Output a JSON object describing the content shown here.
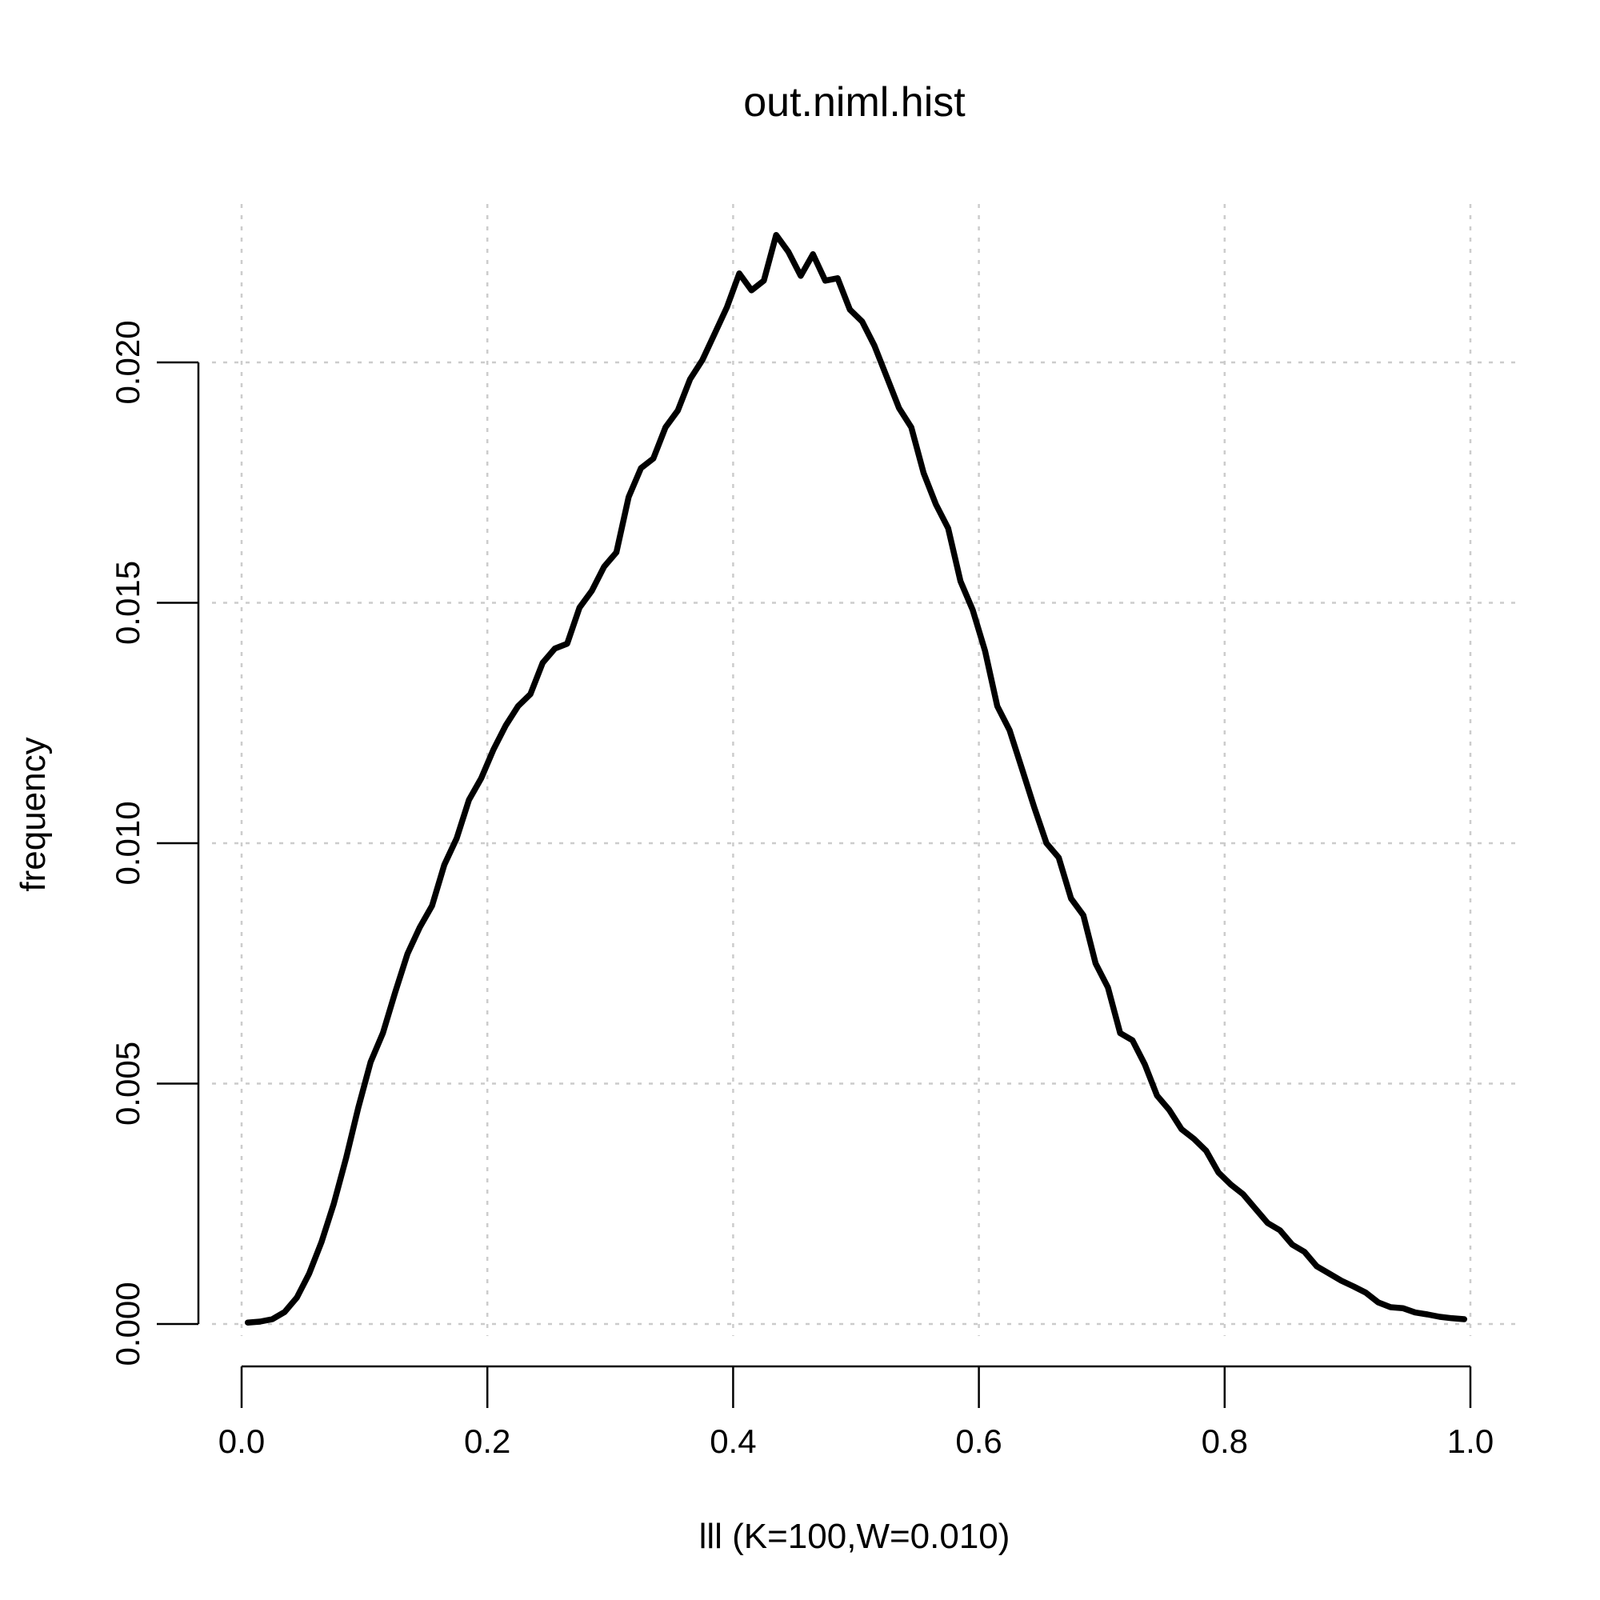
{
  "chart_data": {
    "type": "line",
    "title": "out.niml.hist",
    "xlabel": "lll (K=100,W=0.010)",
    "ylabel": "frequency",
    "xlim": [
      0.0,
      1.0
    ],
    "ylim": [
      0.0,
      0.0235
    ],
    "x_ticks": [
      0.0,
      0.2,
      0.4,
      0.6,
      0.8,
      1.0
    ],
    "x_tick_labels": [
      "0.0",
      "0.2",
      "0.4",
      "0.6",
      "0.8",
      "1.0"
    ],
    "y_ticks": [
      0.0,
      0.005,
      0.01,
      0.015,
      0.02
    ],
    "y_tick_labels": [
      "0.000",
      "0.005",
      "0.010",
      "0.015",
      "0.020"
    ],
    "grid": true,
    "series": [
      {
        "color": "#000000",
        "x": [
          0.005,
          0.015,
          0.025,
          0.035,
          0.045,
          0.055,
          0.065,
          0.075,
          0.085,
          0.095,
          0.105,
          0.115,
          0.125,
          0.135,
          0.145,
          0.155,
          0.165,
          0.175,
          0.185,
          0.195,
          0.205,
          0.215,
          0.225,
          0.235,
          0.245,
          0.255,
          0.265,
          0.275,
          0.285,
          0.295,
          0.305,
          0.315,
          0.325,
          0.335,
          0.345,
          0.355,
          0.365,
          0.375,
          0.385,
          0.395,
          0.405,
          0.415,
          0.425,
          0.435,
          0.445,
          0.455,
          0.465,
          0.475,
          0.485,
          0.495,
          0.505,
          0.515,
          0.525,
          0.535,
          0.545,
          0.555,
          0.565,
          0.575,
          0.585,
          0.595,
          0.605,
          0.615,
          0.625,
          0.635,
          0.645,
          0.655,
          0.665,
          0.675,
          0.685,
          0.695,
          0.705,
          0.715,
          0.725,
          0.735,
          0.745,
          0.755,
          0.765,
          0.775,
          0.785,
          0.795,
          0.805,
          0.815,
          0.825,
          0.835,
          0.845,
          0.855,
          0.865,
          0.875,
          0.885,
          0.895,
          0.905,
          0.915,
          0.925,
          0.935,
          0.945,
          0.955,
          0.965,
          0.975,
          0.985,
          0.995
        ],
        "values": [
          3e-05,
          5e-05,
          0.0001,
          0.00025,
          0.00055,
          0.00105,
          0.0017,
          0.0025,
          0.00345,
          0.0045,
          0.00545,
          0.00605,
          0.0069,
          0.0077,
          0.00825,
          0.0087,
          0.00955,
          0.0101,
          0.0109,
          0.01135,
          0.01195,
          0.01245,
          0.01285,
          0.0131,
          0.01375,
          0.01405,
          0.01415,
          0.0149,
          0.01525,
          0.01575,
          0.01605,
          0.0172,
          0.0178,
          0.018,
          0.01865,
          0.019,
          0.01965,
          0.02005,
          0.0206,
          0.02115,
          0.02185,
          0.0215,
          0.0217,
          0.02265,
          0.0223,
          0.0218,
          0.02225,
          0.0217,
          0.02175,
          0.0211,
          0.02085,
          0.02035,
          0.0197,
          0.01905,
          0.01865,
          0.0177,
          0.01705,
          0.01655,
          0.01545,
          0.01485,
          0.014,
          0.01285,
          0.01235,
          0.01155,
          0.01075,
          0.01,
          0.0097,
          0.00885,
          0.0085,
          0.0075,
          0.007,
          0.00605,
          0.0059,
          0.0054,
          0.00475,
          0.00445,
          0.00405,
          0.00385,
          0.0036,
          0.00315,
          0.0029,
          0.0027,
          0.0024,
          0.0021,
          0.00195,
          0.00165,
          0.0015,
          0.0012,
          0.00105,
          0.0009,
          0.00078,
          0.00065,
          0.00045,
          0.00035,
          0.00033,
          0.00024,
          0.0002,
          0.00015,
          0.00012,
          0.0001
        ]
      }
    ]
  }
}
